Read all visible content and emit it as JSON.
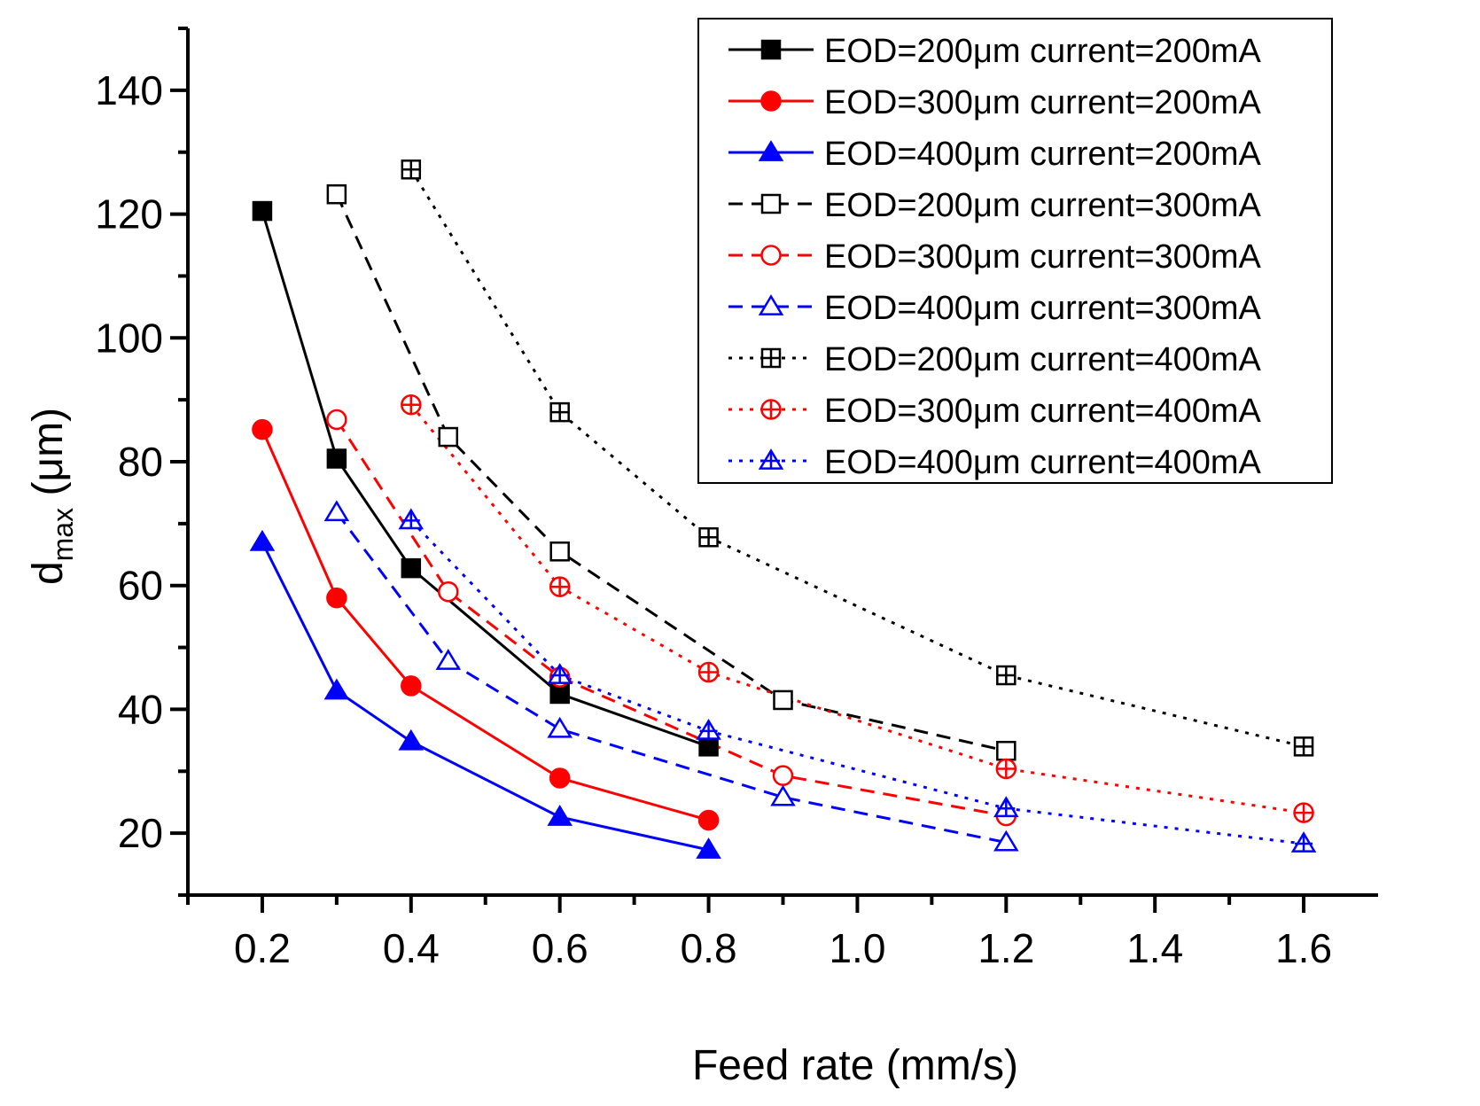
{
  "chart_data": {
    "type": "line",
    "title": "",
    "xlabel": "Feed rate (mm/s)",
    "ylabel": {
      "main": "d",
      "subscript": "max",
      "unit": " (μm)"
    },
    "xlim": [
      0.1,
      1.7
    ],
    "ylim": [
      10,
      150
    ],
    "xticks": [
      0.2,
      0.4,
      0.6,
      0.8,
      1.0,
      1.2,
      1.4,
      1.6
    ],
    "xtick_labels": [
      "0.2",
      "0.4",
      "0.6",
      "0.8",
      "1.0",
      "1.2",
      "1.4",
      "1.6"
    ],
    "yticks": [
      20,
      40,
      60,
      80,
      100,
      120,
      140
    ],
    "ytick_labels": [
      "20",
      "40",
      "60",
      "80",
      "100",
      "120",
      "140"
    ],
    "grid": false,
    "legend_position": "top-right",
    "series": [
      {
        "name": "EOD=200μm current=200mA",
        "color": "#000000",
        "dash": "solid",
        "marker": "square-filled",
        "x": [
          0.2,
          0.3,
          0.4,
          0.6,
          0.8
        ],
        "y": [
          120.5,
          80.5,
          62.8,
          42.5,
          34.0
        ]
      },
      {
        "name": "EOD=300μm current=200mA",
        "color": "#ff0000",
        "dash": "solid",
        "marker": "circle-filled",
        "x": [
          0.2,
          0.3,
          0.4,
          0.6,
          0.8
        ],
        "y": [
          85.2,
          58.0,
          43.8,
          28.9,
          22.1
        ]
      },
      {
        "name": "EOD=400μm current=200mA",
        "color": "#0000ff",
        "dash": "solid",
        "marker": "triangle-filled",
        "x": [
          0.2,
          0.3,
          0.4,
          0.6,
          0.8
        ],
        "y": [
          67.0,
          43.0,
          34.8,
          22.6,
          17.3
        ]
      },
      {
        "name": "EOD=200μm current=300mA",
        "color": "#000000",
        "dash": "dash",
        "marker": "square-open",
        "x": [
          0.3,
          0.45,
          0.6,
          0.9,
          1.2
        ],
        "y": [
          123.2,
          84.0,
          65.5,
          41.5,
          33.3
        ]
      },
      {
        "name": "EOD=300μm current=300mA",
        "color": "#ff0000",
        "dash": "dash",
        "marker": "circle-open",
        "x": [
          0.3,
          0.45,
          0.6,
          0.9,
          1.2
        ],
        "y": [
          86.8,
          59.0,
          45.2,
          29.3,
          22.8
        ]
      },
      {
        "name": "EOD=400μm current=300mA",
        "color": "#0000ff",
        "dash": "dash",
        "marker": "triangle-open",
        "x": [
          0.3,
          0.45,
          0.6,
          0.9,
          1.2
        ],
        "y": [
          71.8,
          47.8,
          36.8,
          25.8,
          18.5
        ]
      },
      {
        "name": "EOD=200μm current=400mA",
        "color": "#000000",
        "dash": "dot",
        "marker": "square-plus",
        "x": [
          0.4,
          0.6,
          0.8,
          1.2,
          1.6
        ],
        "y": [
          127.2,
          88.0,
          67.8,
          45.5,
          34.0
        ]
      },
      {
        "name": "EOD=300μm current=400mA",
        "color": "#ff0000",
        "dash": "dot",
        "marker": "circle-plus",
        "x": [
          0.4,
          0.6,
          0.8,
          1.2,
          1.6
        ],
        "y": [
          89.2,
          59.8,
          46.0,
          30.4,
          23.3
        ]
      },
      {
        "name": "EOD=400μm current=400mA",
        "color": "#0000ff",
        "dash": "dot",
        "marker": "triangle-plus",
        "x": [
          0.4,
          0.6,
          0.8,
          1.2,
          1.6
        ],
        "y": [
          70.5,
          45.5,
          36.5,
          24.0,
          18.3
        ]
      }
    ]
  }
}
